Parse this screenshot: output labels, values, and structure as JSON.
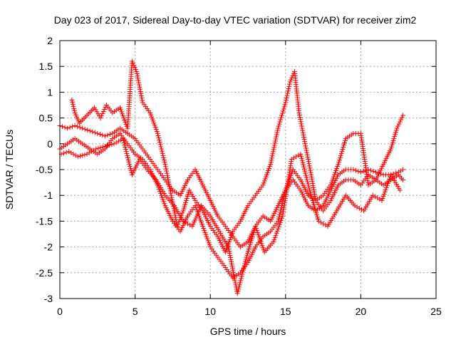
{
  "chart_data": {
    "type": "scatter",
    "title": "Day 023 of 2017, Sidereal Day-to-day VTEC variation (SDTVAR) for receiver zim2",
    "xlabel": "GPS time / hours",
    "ylabel": "SDTVAR / TECUs",
    "xlim": [
      0,
      25
    ],
    "ylim": [
      -3,
      2
    ],
    "xticks": [
      0,
      5,
      10,
      15,
      20,
      25
    ],
    "yticks": [
      -3,
      -2.5,
      -2,
      -1.5,
      -1,
      -0.5,
      0,
      0.5,
      1,
      1.5,
      2
    ],
    "xtick_labels": [
      "0",
      "5",
      "10",
      "15",
      "20",
      "25"
    ],
    "ytick_labels": [
      "-3",
      "-2.5",
      "-2",
      "-1.5",
      "-1",
      "-0.5",
      "0",
      "0.5",
      "1",
      "1.5",
      "2"
    ],
    "grid": true,
    "marker": "plus",
    "color": "#ff0000",
    "series": [
      {
        "x": [
          0.0,
          0.5,
          1.0,
          1.5,
          2.0,
          2.5,
          3.0,
          3.5,
          4.0,
          4.5,
          5.0,
          5.5,
          6.0,
          6.5,
          7.0,
          7.5,
          8.0,
          8.5,
          9.0,
          9.5,
          10.0,
          10.5,
          11.0,
          11.5,
          12.0,
          12.5,
          13.0,
          13.5,
          14.0,
          14.5,
          15.0,
          15.5,
          16.0,
          16.5,
          17.0,
          17.5,
          18.0,
          18.5,
          19.0,
          19.5,
          20.0,
          20.5,
          21.0,
          21.5,
          22.0,
          22.5,
          22.8
        ],
        "y": [
          0.35,
          0.3,
          0.35,
          0.3,
          0.25,
          0.2,
          0.15,
          0.2,
          0.3,
          0.2,
          0.1,
          -0.1,
          -0.3,
          -0.5,
          -0.7,
          -0.9,
          -1.0,
          -0.7,
          -0.5,
          -0.8,
          -1.1,
          -1.4,
          -1.6,
          -1.8,
          -2.0,
          -1.9,
          -1.6,
          -1.4,
          -1.5,
          -1.2,
          -0.9,
          -0.7,
          -0.9,
          -1.2,
          -1.3,
          -1.2,
          -0.9,
          -0.6,
          -0.5,
          -0.5,
          -0.55,
          -0.5,
          -0.55,
          -0.6,
          -0.6,
          -0.55,
          -0.5
        ]
      },
      {
        "x": [
          0.0,
          0.5,
          1.0,
          1.5,
          2.0,
          2.5,
          3.0,
          3.5,
          4.0,
          4.5,
          5.0,
          5.5,
          6.0,
          6.5,
          7.0,
          7.5,
          8.0,
          8.5,
          9.0,
          9.5,
          10.0,
          10.5,
          11.0,
          11.5,
          12.0,
          12.5,
          13.0,
          13.5,
          14.0,
          14.5,
          15.0,
          15.5,
          16.0,
          16.5,
          17.0,
          17.5,
          18.0,
          18.5,
          19.0,
          19.5,
          20.0,
          20.5,
          21.0,
          21.5,
          22.0,
          22.5,
          22.8
        ],
        "y": [
          -0.1,
          0.0,
          0.1,
          0.0,
          -0.1,
          -0.2,
          -0.1,
          0.1,
          0.2,
          0.0,
          -0.2,
          -0.3,
          -0.5,
          -0.8,
          -1.2,
          -1.5,
          -1.7,
          -1.4,
          -1.2,
          -1.6,
          -2.0,
          -2.2,
          -2.4,
          -2.6,
          -2.5,
          -2.3,
          -2.0,
          -1.8,
          -1.7,
          -1.5,
          -0.9,
          -0.5,
          -0.7,
          -1.0,
          -1.1,
          -1.3,
          -1.1,
          -0.8,
          -0.7,
          -0.7,
          -0.8,
          -0.6,
          -0.7,
          -0.8,
          -0.7,
          -0.6,
          -0.7
        ]
      },
      {
        "x": [
          0.8,
          1.0,
          1.3,
          1.8,
          2.3,
          2.7,
          3.1,
          3.5,
          4.0,
          4.5,
          4.8,
          5.1,
          5.5,
          6.0,
          6.5,
          7.0,
          7.4,
          7.8,
          8.2,
          8.6,
          9.0,
          9.5,
          10.0,
          10.5,
          11.0,
          11.5,
          12.0,
          12.5,
          13.0,
          13.5,
          14.0,
          14.5,
          15.0,
          15.3,
          15.6,
          15.9,
          16.3,
          16.7,
          17.0,
          17.5,
          18.0,
          18.5,
          19.0,
          19.5,
          20.0,
          20.5,
          21.0,
          21.5,
          22.0,
          22.4,
          22.8
        ],
        "y": [
          0.85,
          0.6,
          0.4,
          0.55,
          0.7,
          0.5,
          0.75,
          0.6,
          0.7,
          0.3,
          1.6,
          1.4,
          0.8,
          0.6,
          0.2,
          -0.4,
          -1.0,
          -1.6,
          -1.3,
          -0.9,
          -1.1,
          -1.3,
          -1.6,
          -1.8,
          -2.1,
          -1.7,
          -1.5,
          -1.2,
          -1.0,
          -0.8,
          -0.4,
          0.3,
          0.8,
          1.2,
          1.4,
          0.6,
          0.0,
          -0.6,
          -1.1,
          -1.0,
          -0.8,
          -0.4,
          0.1,
          0.2,
          0.2,
          -0.8,
          -0.7,
          -0.4,
          -0.1,
          0.3,
          0.55
        ]
      },
      {
        "x": [
          0.1,
          0.6,
          1.2,
          1.8,
          2.4,
          3.0,
          3.6,
          4.2,
          4.8,
          5.3,
          5.8,
          6.4,
          7.0,
          7.6,
          8.2,
          8.8,
          9.4,
          10.0,
          10.6,
          11.2,
          11.8,
          12.4,
          13.0,
          13.6,
          14.2,
          14.8,
          15.4,
          16.0,
          16.6,
          17.2,
          17.8,
          18.4,
          19.0,
          19.6,
          20.2,
          20.8,
          21.4,
          22.0,
          22.6
        ],
        "y": [
          -0.2,
          -0.15,
          -0.25,
          -0.2,
          -0.1,
          -0.05,
          0.0,
          0.1,
          -0.6,
          -0.3,
          -0.5,
          -0.7,
          -1.0,
          -1.2,
          -1.5,
          -1.6,
          -1.2,
          -1.4,
          -1.7,
          -2.0,
          -2.9,
          -2.2,
          -1.6,
          -2.1,
          -1.9,
          -1.4,
          -0.3,
          -0.2,
          -0.9,
          -1.5,
          -1.6,
          -1.3,
          -1.0,
          -1.2,
          -1.3,
          -1.0,
          -1.1,
          -0.6,
          -0.9
        ]
      }
    ]
  }
}
